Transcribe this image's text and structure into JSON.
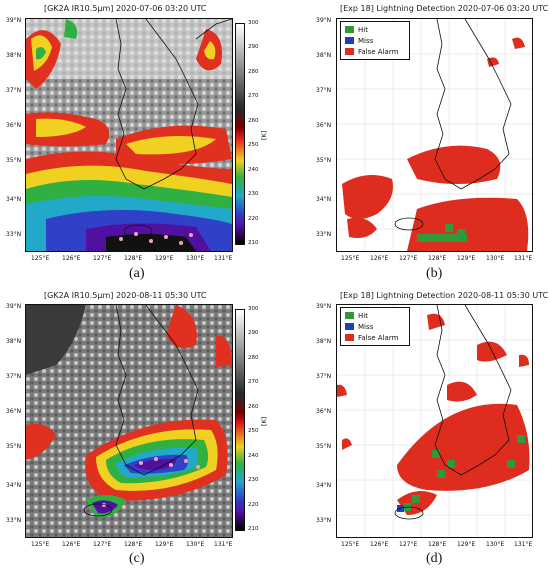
{
  "panels": {
    "a": {
      "title": "[GK2A IR10.5μm] 2020-07-06 03:20 UTC",
      "caption": "(a)",
      "colorbar": {
        "ticks": [
          "300",
          "290",
          "280",
          "270",
          "260",
          "250",
          "240",
          "230",
          "220",
          "210"
        ],
        "unit": "[K]"
      }
    },
    "b": {
      "title": "[Exp 18] Lightning Detection 2020-07-06 03:20 UTC",
      "caption": "(b)",
      "legend": {
        "hit": "Hit",
        "miss": "Miss",
        "false_alarm": "False Alarm"
      }
    },
    "c": {
      "title": "[GK2A IR10.5μm] 2020-08-11 05:30 UTC",
      "caption": "(c)",
      "colorbar": {
        "ticks": [
          "300",
          "290",
          "280",
          "270",
          "260",
          "250",
          "240",
          "230",
          "220",
          "210"
        ],
        "unit": "[K]"
      }
    },
    "d": {
      "title": "[Exp 18] Lightning Detection 2020-08-11 05:30 UTC",
      "caption": "(d)",
      "legend": {
        "hit": "Hit",
        "miss": "Miss",
        "false_alarm": "False Alarm"
      }
    }
  },
  "lat_labels": [
    "39°N",
    "38°N",
    "37°N",
    "36°N",
    "35°N",
    "34°N",
    "33°N"
  ],
  "lon_labels": [
    "125°E",
    "126°E",
    "127°E",
    "128°E",
    "129°E",
    "130°E",
    "131°E"
  ],
  "colors": {
    "hit": "#2e9a3c",
    "miss": "#1f3fb8",
    "false_alarm": "#de2d1f",
    "coast": "#111111"
  }
}
